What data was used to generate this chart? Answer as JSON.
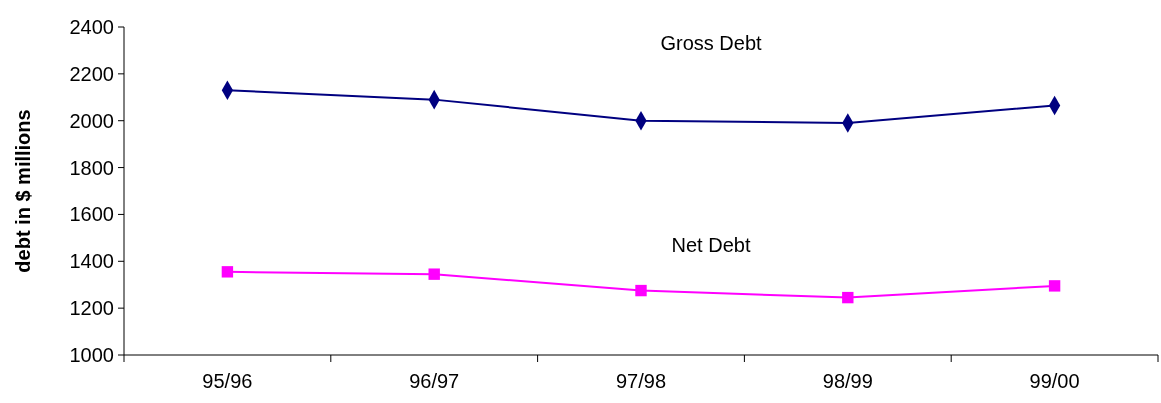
{
  "chart_data": {
    "type": "line",
    "ylabel": "debt in $ millions",
    "categories": [
      "95/96",
      "96/97",
      "97/98",
      "98/99",
      "99/00"
    ],
    "series": [
      {
        "name": "Gross Debt",
        "color": "#000080",
        "marker": "diamond",
        "values": [
          2130,
          2090,
          2000,
          1990,
          2065
        ]
      },
      {
        "name": "Net Debt",
        "color": "#ff00ff",
        "marker": "square",
        "values": [
          1355,
          1345,
          1275,
          1245,
          1295
        ]
      }
    ],
    "ylim": [
      1000,
      2400
    ],
    "yticks": [
      1000,
      1200,
      1400,
      1600,
      1800,
      2000,
      2200,
      2400
    ],
    "grid": false
  }
}
